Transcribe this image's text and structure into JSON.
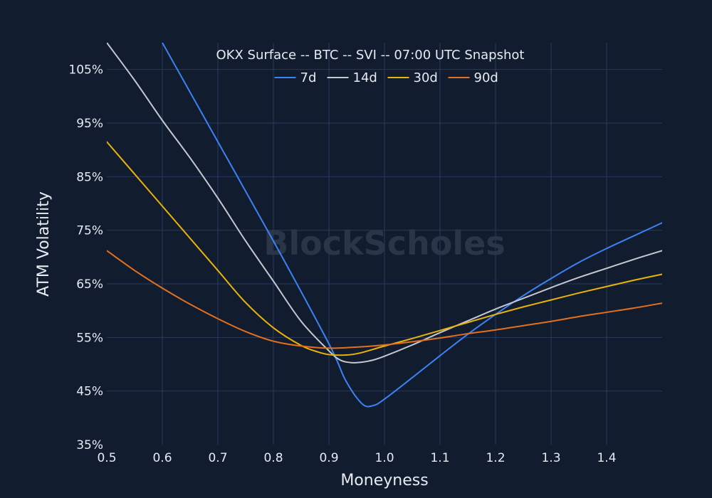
{
  "watermark": "BlockScholes",
  "colors": {
    "background": "#111c2e",
    "grid": "#263a5e",
    "text": "#e6ebf2"
  },
  "chart_data": {
    "type": "line",
    "title": "OKX Surface -- BTC -- SVI -- 07:00 UTC Snapshot",
    "xlabel": "Moneyness",
    "ylabel": "ATM Volatility",
    "xlim": [
      0.5,
      1.5
    ],
    "ylim": [
      35,
      110
    ],
    "xticks": [
      {
        "value": 0.5,
        "label": "0.5"
      },
      {
        "value": 0.6,
        "label": "0.6"
      },
      {
        "value": 0.7,
        "label": "0.7"
      },
      {
        "value": 0.8,
        "label": "0.8"
      },
      {
        "value": 0.9,
        "label": "0.9"
      },
      {
        "value": 1.0,
        "label": "1.0"
      },
      {
        "value": 1.1,
        "label": "1.1"
      },
      {
        "value": 1.2,
        "label": "1.2"
      },
      {
        "value": 1.3,
        "label": "1.3"
      },
      {
        "value": 1.4,
        "label": "1.4"
      }
    ],
    "yticks": [
      {
        "value": 35,
        "label": "35%"
      },
      {
        "value": 45,
        "label": "45%"
      },
      {
        "value": 55,
        "label": "55%"
      },
      {
        "value": 65,
        "label": "65%"
      },
      {
        "value": 75,
        "label": "75%"
      },
      {
        "value": 85,
        "label": "85%"
      },
      {
        "value": 95,
        "label": "95%"
      },
      {
        "value": 105,
        "label": "105%"
      }
    ],
    "grid": true,
    "legend_position": "top-center",
    "series": [
      {
        "name": "7d",
        "color": "#3b82f6",
        "x": [
          0.6,
          0.7,
          0.8,
          0.9,
          0.93,
          0.96,
          0.98,
          1.0,
          1.05,
          1.1,
          1.15,
          1.2,
          1.25,
          1.3,
          1.35,
          1.4,
          1.45,
          1.5
        ],
        "y": [
          110,
          91.5,
          73,
          53.8,
          47,
          42.6,
          42.3,
          43.5,
          47.5,
          51.6,
          55.6,
          59.3,
          62.8,
          66,
          69,
          71.6,
          74,
          76.4
        ]
      },
      {
        "name": "14d",
        "color": "#c4c8cf",
        "x": [
          0.5,
          0.55,
          0.6,
          0.65,
          0.7,
          0.75,
          0.8,
          0.85,
          0.9,
          0.92,
          0.94,
          0.96,
          0.98,
          1.0,
          1.05,
          1.1,
          1.15,
          1.2,
          1.25,
          1.3,
          1.35,
          1.4,
          1.45,
          1.5
        ],
        "y": [
          110,
          103,
          95.5,
          88.5,
          81,
          73,
          65.5,
          58,
          52.5,
          50.8,
          50.3,
          50.4,
          50.8,
          51.5,
          53.6,
          55.9,
          58.1,
          60.3,
          62.3,
          64.3,
          66.2,
          67.9,
          69.6,
          71.2
        ]
      },
      {
        "name": "30d",
        "color": "#eab308",
        "x": [
          0.5,
          0.55,
          0.6,
          0.65,
          0.7,
          0.75,
          0.8,
          0.85,
          0.88,
          0.9,
          0.92,
          0.94,
          0.96,
          0.98,
          1.0,
          1.05,
          1.1,
          1.15,
          1.2,
          1.25,
          1.3,
          1.35,
          1.4,
          1.45,
          1.5
        ],
        "y": [
          91.5,
          85.5,
          79.5,
          73.5,
          67.5,
          61.5,
          56.8,
          53.5,
          52.3,
          51.8,
          51.7,
          51.8,
          52.2,
          52.8,
          53.4,
          54.8,
          56.3,
          57.8,
          59.3,
          60.7,
          62,
          63.3,
          64.5,
          65.7,
          66.8
        ]
      },
      {
        "name": "90d",
        "color": "#e2701f",
        "x": [
          0.5,
          0.55,
          0.6,
          0.65,
          0.7,
          0.75,
          0.8,
          0.85,
          0.9,
          0.95,
          1.0,
          1.05,
          1.1,
          1.15,
          1.2,
          1.25,
          1.3,
          1.35,
          1.4,
          1.45,
          1.5
        ],
        "y": [
          71.2,
          67.5,
          64.2,
          61.2,
          58.5,
          56.1,
          54.3,
          53.4,
          53,
          53.2,
          53.6,
          54.2,
          54.9,
          55.7,
          56.4,
          57.2,
          58,
          58.9,
          59.7,
          60.5,
          61.4
        ]
      }
    ]
  }
}
